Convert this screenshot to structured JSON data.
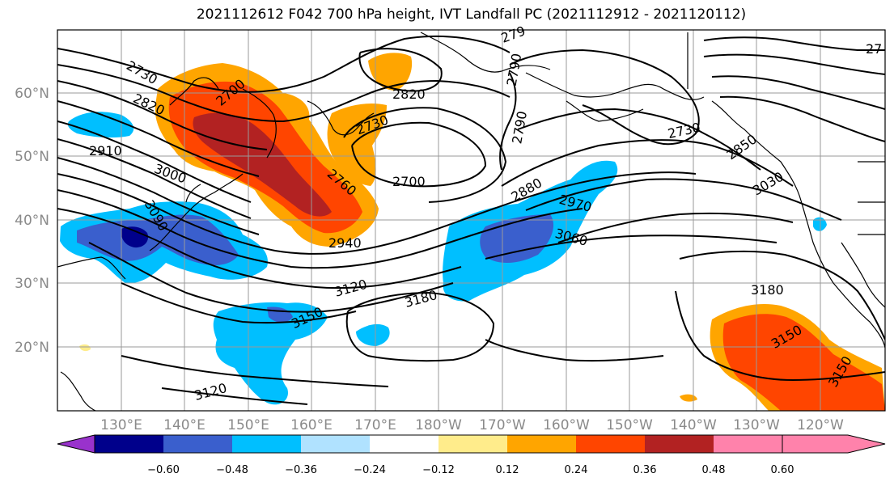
{
  "title": "2021112612 F042 700 hPa height, IVT Landfall PC (2021112912 - 2021120112)",
  "map": {
    "lat_labels": [
      "60°N",
      "50°N",
      "40°N",
      "30°N",
      "20°N"
    ],
    "lon_labels": [
      "130°E",
      "140°E",
      "150°E",
      "160°E",
      "170°E",
      "180°W",
      "170°W",
      "160°W",
      "150°W",
      "140°W",
      "130°W",
      "120°W"
    ],
    "contour_labels": [
      "2730",
      "2820",
      "2910",
      "3000",
      "3090",
      "2700",
      "2760",
      "2940",
      "2730",
      "2820",
      "2790",
      "2790",
      "2700",
      "2880",
      "2970",
      "3060",
      "3120",
      "3180",
      "3150",
      "3120",
      "2730",
      "2850",
      "3030",
      "3180",
      "3150",
      "3150",
      "27",
      "279"
    ],
    "colors": {
      "land_outline": "#000000",
      "grid": "#9a9a9a",
      "contour": "#000000"
    }
  },
  "colorbar": {
    "tick_labels": [
      "−0.60",
      "−0.48",
      "−0.36",
      "−0.24",
      "−0.12",
      "0.12",
      "0.24",
      "0.36",
      "0.48",
      "0.60"
    ],
    "colors": [
      "#9932cc",
      "#00008b",
      "#3a5fcd",
      "#00bfff",
      "#b0e2ff",
      "#ffffff",
      "#ffec8b",
      "#ffa500",
      "#ff4500",
      "#b22222",
      "#ff82ab"
    ]
  }
}
